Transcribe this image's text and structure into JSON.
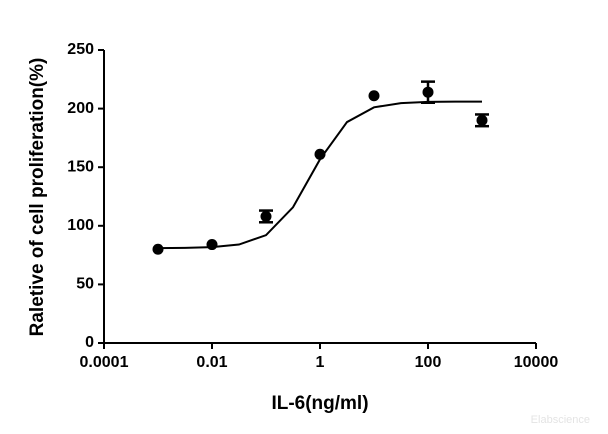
{
  "chart_data": {
    "type": "scatter",
    "x_label": "IL-6(ng/ml)",
    "y_label": "Raletive of cell proliferation(%)",
    "xscale": "log",
    "xlim": [
      0.0001,
      10000
    ],
    "xticks": [
      0.0001,
      0.01,
      1,
      100,
      10000
    ],
    "ylim": [
      0,
      250
    ],
    "yticks": [
      0,
      50,
      100,
      150,
      200,
      250
    ],
    "series": [
      {
        "type": "scatter",
        "color": "#000000",
        "x": [
          0.001,
          0.01,
          0.1,
          1,
          10,
          100,
          1000
        ],
        "values": [
          80,
          84,
          108,
          161,
          211,
          214,
          190
        ],
        "errors": [
          null,
          null,
          5,
          null,
          null,
          9,
          5
        ]
      },
      {
        "type": "line",
        "color": "#000000",
        "x": [
          0.001,
          0.00316,
          0.01,
          0.0316,
          0.1,
          0.316,
          1,
          3.16,
          10,
          31.6,
          100,
          316,
          1000
        ],
        "values": [
          81,
          81.2,
          81.8,
          84,
          92,
          115.8,
          156.7,
          188.5,
          201.1,
          204.7,
          205.7,
          205.9,
          206
        ]
      }
    ],
    "watermark": "Elabscience"
  }
}
